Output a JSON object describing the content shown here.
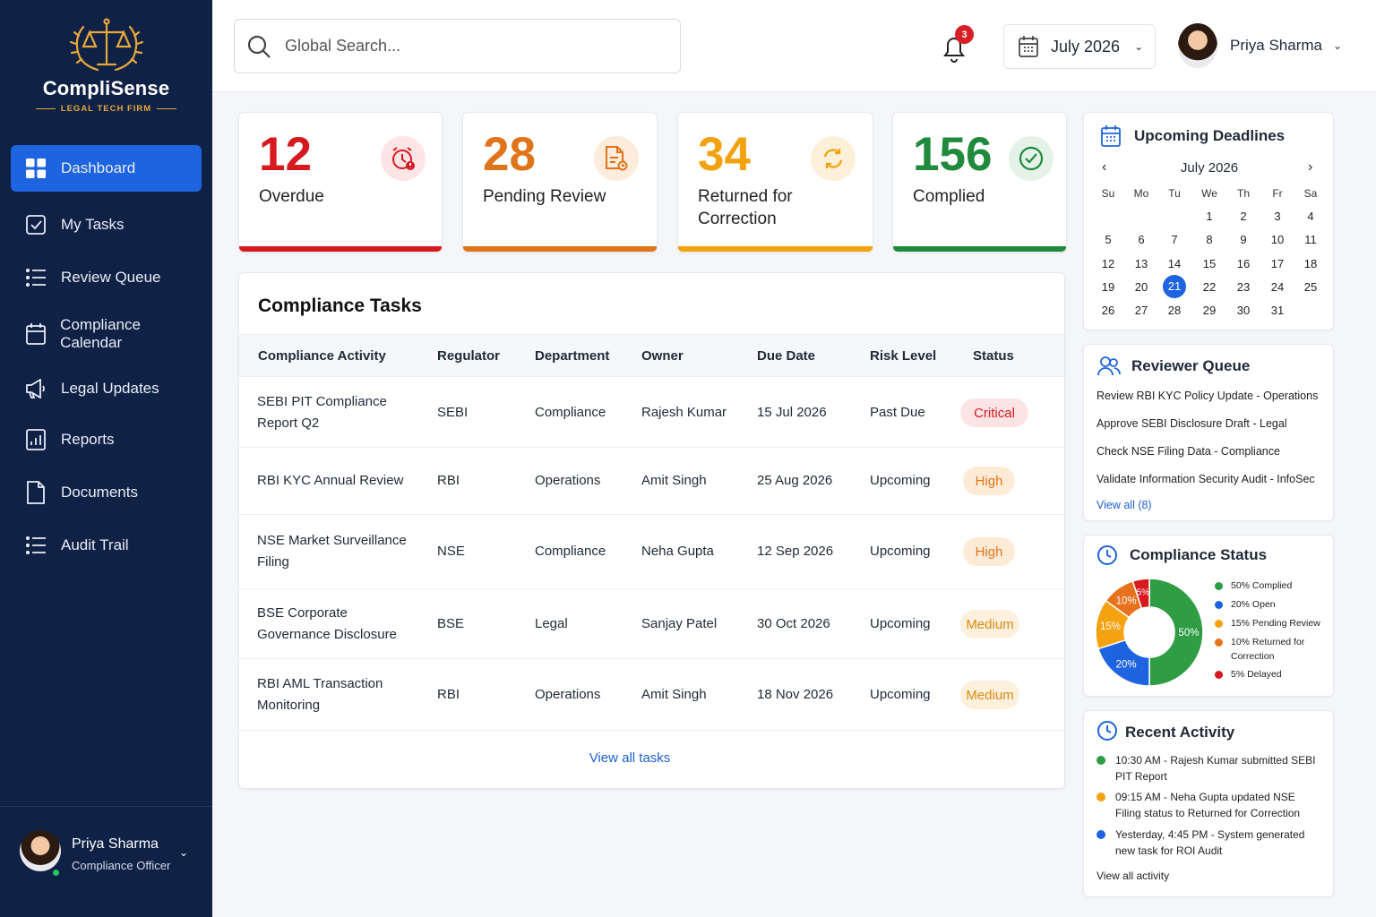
{
  "brand": {
    "name": "CompliSense",
    "tagline": "LEGAL TECH FIRM"
  },
  "nav": [
    {
      "label": "Dashboard",
      "icon": "dashboard-icon",
      "active": true
    },
    {
      "label": "My Tasks",
      "icon": "checkbox-icon"
    },
    {
      "label": "Review Queue",
      "icon": "list-icon"
    },
    {
      "label": "Compliance Calendar",
      "icon": "calendar-icon"
    },
    {
      "label": "Legal Updates",
      "icon": "megaphone-icon"
    },
    {
      "label": "Reports",
      "icon": "report-icon"
    },
    {
      "label": "Documents",
      "icon": "document-icon"
    },
    {
      "label": "Audit Trail",
      "icon": "list-icon"
    }
  ],
  "sidebar_user": {
    "name": "Priya Sharma",
    "role": "Compliance Officer"
  },
  "search": {
    "placeholder": "Global Search..."
  },
  "notifications": {
    "count": "3"
  },
  "date_selector": {
    "label": "July 2026"
  },
  "top_user": {
    "name": "Priya Sharma"
  },
  "stats": [
    {
      "value": "12",
      "label": "Overdue",
      "color": "#d71920",
      "icon": "alarm-clock-icon"
    },
    {
      "value": "28",
      "label": "Pending Review",
      "color": "#e0741a",
      "icon": "document-review-icon"
    },
    {
      "value": "34",
      "label": "Returned for Correction",
      "color": "#f2a20c",
      "icon": "refresh-icon"
    },
    {
      "value": "156",
      "label": "Complied",
      "color": "#1f8a3c",
      "icon": "check-circle-icon"
    }
  ],
  "tasks": {
    "title": "Compliance Tasks",
    "columns": [
      "Compliance Activity",
      "Regulator",
      "Department",
      "Owner",
      "Due Date",
      "Risk Level",
      "Status"
    ],
    "rows": [
      {
        "activity": "SEBI PIT Compliance Report Q2",
        "regulator": "SEBI",
        "department": "Compliance",
        "owner": "Rajesh Kumar",
        "due": "15 Jul 2026",
        "risk": "Past Due",
        "status": "Critical"
      },
      {
        "activity": "RBI KYC Annual Review",
        "regulator": "RBI",
        "department": "Operations",
        "owner": "Amit Singh",
        "due": "25 Aug 2026",
        "risk": "Upcoming",
        "status": "High"
      },
      {
        "activity": "NSE Market Surveillance Filing",
        "regulator": "NSE",
        "department": "Compliance",
        "owner": "Neha Gupta",
        "due": "12 Sep 2026",
        "risk": "Upcoming",
        "status": "High"
      },
      {
        "activity": "BSE Corporate Governance Disclosure",
        "regulator": "BSE",
        "department": "Legal",
        "owner": "Sanjay Patel",
        "due": "30 Oct 2026",
        "risk": "Upcoming",
        "status": "Medium"
      },
      {
        "activity": "RBI AML Transaction Monitoring",
        "regulator": "RBI",
        "department": "Operations",
        "owner": "Amit Singh",
        "due": "18 Nov 2026",
        "risk": "Upcoming",
        "status": "Medium"
      }
    ],
    "view_all": "View all tasks"
  },
  "deadlines": {
    "title": "Upcoming Deadlines",
    "month": "July 2026",
    "weekdays": [
      "Su",
      "Mo",
      "Tu",
      "We",
      "Th",
      "Fr",
      "Sa"
    ],
    "first_weekday": 3,
    "days_in_month": 31,
    "today": 21
  },
  "reviewer": {
    "title": "Reviewer Queue",
    "items": [
      "Review RBI KYC Policy Update - Operations",
      "Approve SEBI Disclosure Draft - Legal",
      "Check NSE Filing Data - Compliance",
      "Validate Information Security Audit - InfoSec"
    ],
    "view_all": "View all (8)"
  },
  "chart_data": {
    "type": "pie",
    "title": "Compliance Status",
    "donut": true,
    "slices": [
      {
        "label": "Complied",
        "value": 50,
        "color": "#2e9d44",
        "legend": "50% Complied"
      },
      {
        "label": "Open",
        "value": 20,
        "color": "#1e63e0",
        "legend": "20% Open"
      },
      {
        "label": "Pending Review",
        "value": 15,
        "color": "#f5a20f",
        "legend": "15% Pending Review"
      },
      {
        "label": "Returned for Correction",
        "value": 10,
        "color": "#e8711b",
        "legend": "10% Returned for Correction"
      },
      {
        "label": "Delayed",
        "value": 5,
        "color": "#d71920",
        "legend": "5% Delayed"
      }
    ]
  },
  "activity": {
    "title": "Recent Activity",
    "items": [
      {
        "text": "10:30 AM - Rajesh Kumar submitted SEBI PIT Report",
        "color": "#2e9d44"
      },
      {
        "text": "09:15 AM - Neha Gupta updated NSE Filing status to Returned for Correction",
        "color": "#f5a20f"
      },
      {
        "text": "Yesterday, 4:45 PM - System generated new task for ROI Audit",
        "color": "#1e63e0"
      }
    ],
    "view_all": "View all activity"
  }
}
